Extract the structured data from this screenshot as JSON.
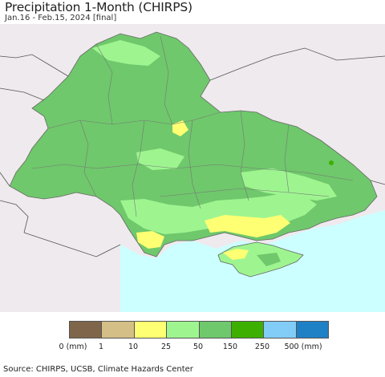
{
  "header": {
    "title": "Precipitation 1-Month (CHIRPS)",
    "subtitle": "Jan.16 - Feb.15, 2024 [final]"
  },
  "map": {
    "background_land_color": "#efeaee",
    "sea_color": "#ccffff",
    "border_color": "#888888"
  },
  "legend": {
    "colors": [
      "#7f664a",
      "#d4bf86",
      "#ffff73",
      "#9ef590",
      "#6fc86b",
      "#3caf00",
      "#82ccf8",
      "#1e80c5"
    ],
    "labels": [
      "0 (mm)",
      "1",
      "10",
      "25",
      "50",
      "150",
      "250",
      "500 (mm)"
    ]
  },
  "footer": {
    "source": "Source: CHIRPS, UCSB, Climate Hazards Center"
  }
}
